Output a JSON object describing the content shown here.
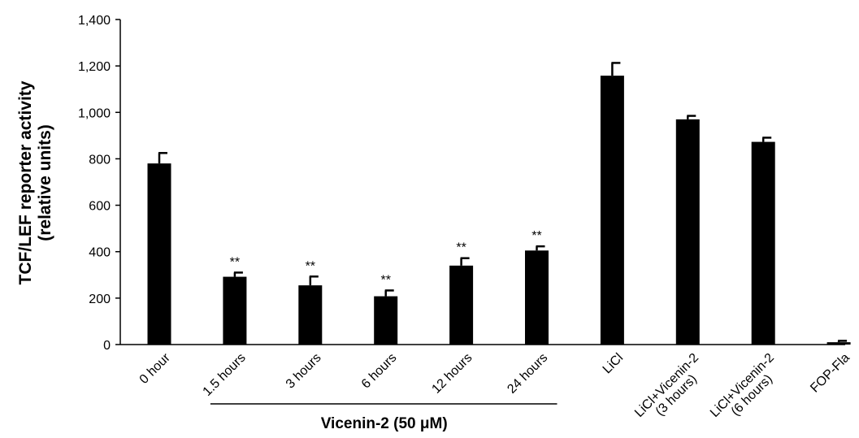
{
  "chart_data": {
    "type": "bar",
    "categories": [
      "0 hour",
      "1.5 hours",
      "3 hours",
      "6 hours",
      "12 hours",
      "24 hours",
      "LiCl",
      "LiCl+Vicenin-2\n(3 hours)",
      "LiCl+Vicenin-2\n(6 hours)",
      "FOP-Fla"
    ],
    "values": [
      780,
      292,
      255,
      208,
      340,
      405,
      1158,
      970,
      873,
      10
    ],
    "errors": [
      45,
      18,
      38,
      25,
      32,
      18,
      55,
      15,
      18,
      6
    ],
    "significance": [
      "",
      "**",
      "**",
      "**",
      "**",
      "**",
      "",
      "",
      "",
      ""
    ],
    "ylabel_lines": [
      "TCF/LEF reporter activity",
      "(relative units)"
    ],
    "ylim": [
      0,
      1400
    ],
    "yticks": [
      0,
      200,
      400,
      600,
      800,
      1000,
      1200,
      1400
    ],
    "ytick_labels": [
      "0",
      "200",
      "400",
      "600",
      "800",
      "1,000",
      "1,200",
      "1,400"
    ],
    "group_label": "Vicenin-2 (50 μM)",
    "group_members": [
      1,
      5
    ],
    "bar_color": "#000000",
    "grid": false
  }
}
